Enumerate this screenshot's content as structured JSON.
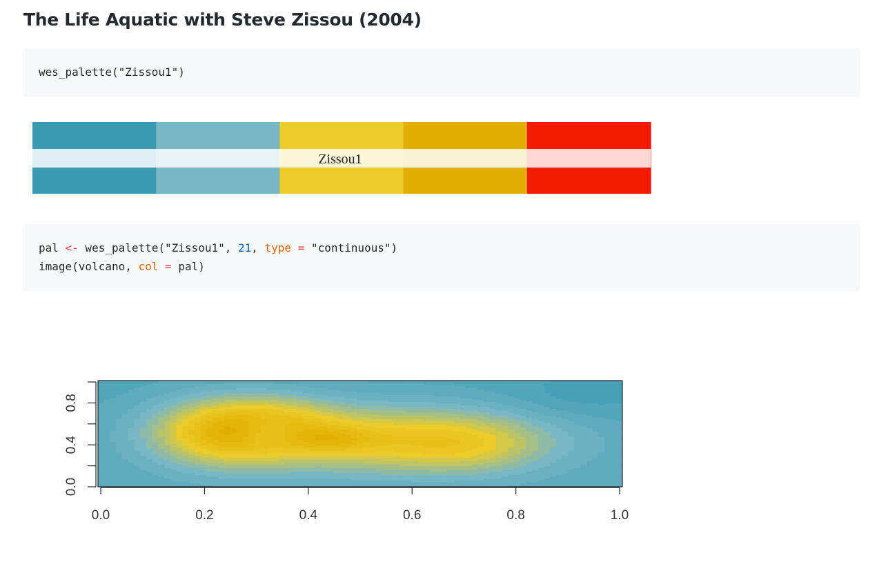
{
  "page": {
    "title": "The Life Aquatic with Steve Zissou (2004)"
  },
  "code_blocks": [
    {
      "lines": [
        [
          {
            "text": "wes_palette(\"Zissou1\")",
            "kind": "ident"
          }
        ]
      ]
    },
    {
      "lines": [
        [
          {
            "text": "pal ",
            "kind": "ident"
          },
          {
            "text": "<-",
            "kind": "op"
          },
          {
            "text": " wes_palette(\"Zissou1\", ",
            "kind": "ident"
          },
          {
            "text": "21",
            "kind": "num"
          },
          {
            "text": ", ",
            "kind": "ident"
          },
          {
            "text": "type",
            "kind": "arg"
          },
          {
            "text": " ",
            "kind": "ident"
          },
          {
            "text": "=",
            "kind": "op"
          },
          {
            "text": " \"continuous\")",
            "kind": "ident"
          }
        ],
        [
          {
            "text": "image(volcano, ",
            "kind": "ident"
          },
          {
            "text": "col",
            "kind": "arg"
          },
          {
            "text": " ",
            "kind": "ident"
          },
          {
            "text": "=",
            "kind": "op"
          },
          {
            "text": " pal)",
            "kind": "ident"
          }
        ]
      ]
    }
  ],
  "chart_data": [
    {
      "type": "palette",
      "title": "Zissou1",
      "colors": [
        "#3B9AB2",
        "#78B7C5",
        "#EBCC2A",
        "#E1AF00",
        "#F21A00"
      ]
    },
    {
      "type": "heatmap",
      "title": "",
      "xlabel": "",
      "ylabel": "",
      "xlim": [
        0.0,
        1.0
      ],
      "ylim": [
        0.0,
        1.0
      ],
      "x_ticks": [
        "0.0",
        "0.2",
        "0.4",
        "0.6",
        "0.8",
        "1.0"
      ],
      "y_ticks": [
        "0.0",
        "0.4",
        "0.8"
      ],
      "n_colors": 21,
      "palette": [
        "#3B9AB2",
        "#78B7C5",
        "#EBCC2A",
        "#E1AF00",
        "#F21A00"
      ],
      "grid": false
    }
  ]
}
